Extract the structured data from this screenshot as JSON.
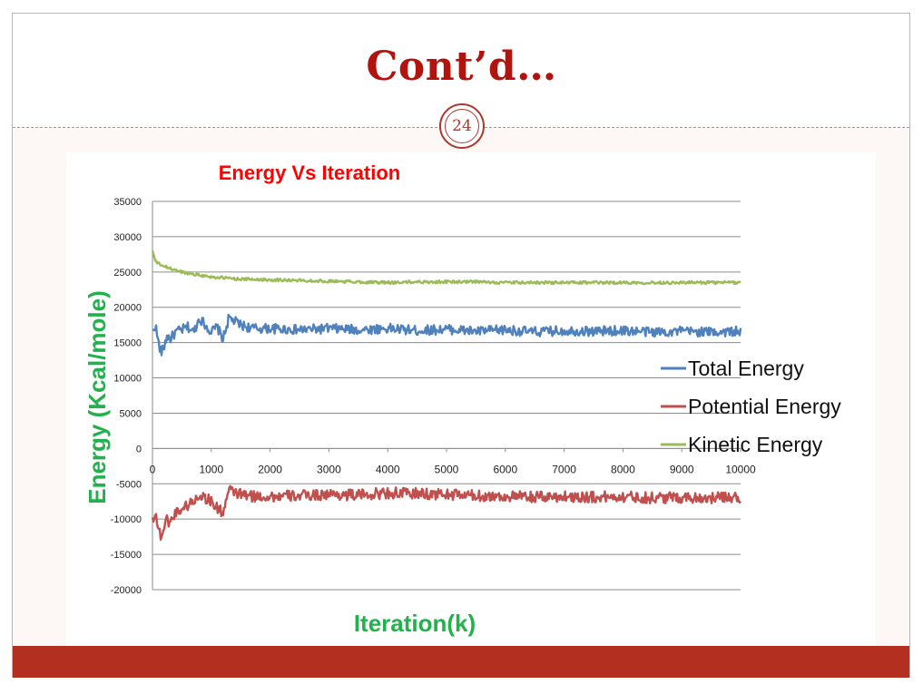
{
  "slide": {
    "title": "Cont’d…",
    "page_number": "24",
    "colors": {
      "title": "#b3130f",
      "accent": "#a9392c",
      "footer": "#b33020"
    }
  },
  "chart_data": {
    "type": "line",
    "title": "Energy Vs Iteration",
    "xlabel": "Iteration(k)",
    "ylabel": "Energy (Kcal/mole)",
    "xlim": [
      0,
      10000
    ],
    "ylim": [
      -20000,
      35000
    ],
    "xticks": [
      "0",
      "1000",
      "2000",
      "3000",
      "4000",
      "5000",
      "6000",
      "7000",
      "8000",
      "9000",
      "10000"
    ],
    "yticks": [
      "35000",
      "30000",
      "25000",
      "20000",
      "15000",
      "10000",
      "5000",
      "0",
      "-5000",
      "-10000",
      "-15000",
      "-20000"
    ],
    "grid": "horizontal",
    "legend_position": "right",
    "colors": {
      "title": "#ff0000",
      "axis_labels": "#22b14c",
      "Total Energy": "#4f81bd",
      "Potential Energy": "#c0504d",
      "Kinetic Energy": "#9bbb59"
    },
    "series": [
      {
        "name": "Total Energy",
        "x": [
          0,
          50,
          100,
          150,
          200,
          250,
          300,
          400,
          500,
          600,
          700,
          800,
          900,
          1000,
          1100,
          1200,
          1300,
          1400,
          1500,
          1700,
          2000,
          2500,
          3000,
          3500,
          4000,
          4500,
          5000,
          5500,
          6000,
          6500,
          7000,
          7500,
          8000,
          8500,
          9000,
          9500,
          10000
        ],
        "y": [
          16500,
          17500,
          15000,
          13500,
          14500,
          16000,
          15500,
          16500,
          16800,
          17200,
          16500,
          18500,
          17500,
          16500,
          17200,
          15500,
          18500,
          18000,
          17500,
          17000,
          17000,
          16800,
          17000,
          16800,
          17000,
          16700,
          16900,
          16600,
          16800,
          16500,
          16700,
          16600,
          16700,
          16500,
          16600,
          16500,
          16600
        ],
        "noise": 700
      },
      {
        "name": "Potential Energy",
        "x": [
          0,
          50,
          100,
          150,
          200,
          250,
          300,
          400,
          500,
          600,
          700,
          800,
          900,
          1000,
          1100,
          1200,
          1300,
          1400,
          1500,
          1700,
          2000,
          2500,
          3000,
          3500,
          4000,
          4500,
          5000,
          5500,
          6000,
          6500,
          7000,
          7500,
          8000,
          8500,
          9000,
          9500,
          10000
        ],
        "y": [
          -10000,
          -9000,
          -11500,
          -12500,
          -11000,
          -10000,
          -10500,
          -9000,
          -8500,
          -8000,
          -7500,
          -6500,
          -7000,
          -7500,
          -8500,
          -9000,
          -6000,
          -6200,
          -6500,
          -6800,
          -6800,
          -6700,
          -6500,
          -6600,
          -6300,
          -6400,
          -6500,
          -6700,
          -6800,
          -6900,
          -6800,
          -6900,
          -6800,
          -7000,
          -6900,
          -7000,
          -6900
        ],
        "noise": 800
      },
      {
        "name": "Kinetic Energy",
        "x": [
          0,
          50,
          100,
          200,
          300,
          500,
          700,
          1000,
          1500,
          2000,
          2500,
          3000,
          3500,
          4000,
          4500,
          5000,
          5500,
          6000,
          7000,
          8000,
          9000,
          10000
        ],
        "y": [
          28000,
          26500,
          26200,
          25800,
          25500,
          25000,
          24700,
          24300,
          24000,
          23900,
          23800,
          23700,
          23600,
          23500,
          23600,
          23600,
          23600,
          23500,
          23500,
          23500,
          23500,
          23500
        ],
        "noise": 200
      }
    ]
  }
}
